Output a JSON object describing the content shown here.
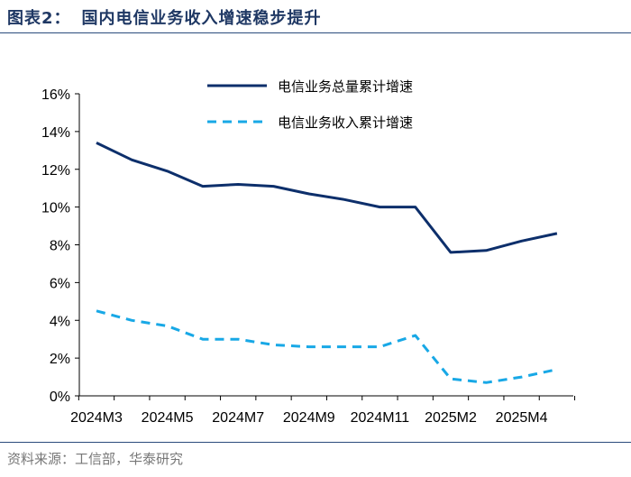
{
  "header": {
    "figure_label": "图表2：",
    "title": "国内电信业务收入增速稳步提升"
  },
  "footer": {
    "source": "资料来源：工信部，华泰研究"
  },
  "colors": {
    "series_total": "#0d2f6b",
    "series_revenue": "#18a8e6",
    "title": "#1f3864",
    "rule": "#2a4b7c"
  },
  "chart_data": {
    "type": "line",
    "title": "",
    "xlabel": "",
    "ylabel": "",
    "ylim": [
      0,
      16
    ],
    "yticks": [
      0,
      2,
      4,
      6,
      8,
      10,
      12,
      14,
      16
    ],
    "ytick_labels": [
      "0%",
      "2%",
      "4%",
      "6%",
      "8%",
      "10%",
      "12%",
      "14%",
      "16%"
    ],
    "x": [
      "2024M3",
      "2024M4",
      "2024M5",
      "2024M6",
      "2024M7",
      "2024M8",
      "2024M9",
      "2024M10",
      "2024M11",
      "2024M12",
      "2025M2",
      "2025M3",
      "2025M4",
      "2025M5"
    ],
    "xtick_labels": [
      "2024M3",
      "2024M5",
      "2024M7",
      "2024M9",
      "2024M11",
      "2025M2",
      "2025M4"
    ],
    "grid": false,
    "legend_position": "top-right",
    "series": [
      {
        "name": "电信业务总量累计增速",
        "style": "solid",
        "values": [
          13.4,
          12.5,
          11.9,
          11.1,
          11.2,
          11.1,
          10.7,
          10.4,
          10.0,
          10.0,
          7.6,
          7.7,
          8.2,
          8.6
        ]
      },
      {
        "name": "电信业务收入累计增速",
        "style": "dashed",
        "values": [
          4.5,
          4.0,
          3.7,
          3.0,
          3.0,
          2.7,
          2.6,
          2.6,
          2.6,
          3.2,
          0.9,
          0.7,
          1.0,
          1.4
        ]
      }
    ]
  }
}
